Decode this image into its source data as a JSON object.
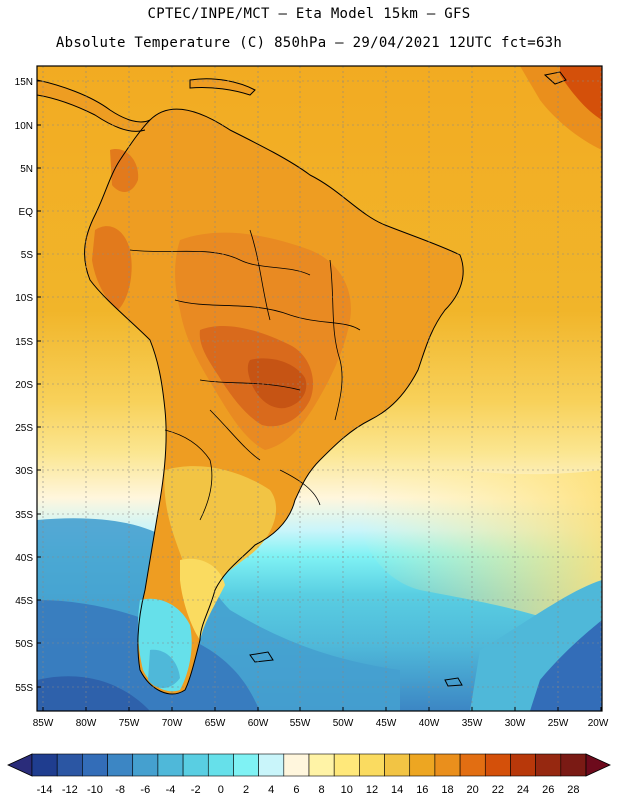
{
  "header": {
    "line1": "CPTEC/INPE/MCT –  Eta Model 15km – GFS",
    "line2": "Absolute Temperature (C) 850hPa – 29/04/2021 12UTC fct=63h"
  },
  "map": {
    "lat_labels": [
      "15N",
      "10N",
      "5N",
      "EQ",
      "5S",
      "10S",
      "15S",
      "20S",
      "25S",
      "30S",
      "35S",
      "40S",
      "45S",
      "50S",
      "55S"
    ],
    "lon_labels": [
      "85W",
      "80W",
      "75W",
      "70W",
      "65W",
      "60W",
      "55W",
      "50W",
      "45W",
      "40W",
      "35W",
      "30W",
      "25W",
      "20W"
    ]
  },
  "colorbar": {
    "labels": [
      "-14",
      "-12",
      "-10",
      "-8",
      "-6",
      "-4",
      "-2",
      "0",
      "2",
      "4",
      "6",
      "8",
      "10",
      "12",
      "14",
      "16",
      "18",
      "20",
      "22",
      "24",
      "26",
      "28"
    ],
    "colors": [
      "#1f3d8f",
      "#2b56a3",
      "#336db8",
      "#3c86c4",
      "#45a0cf",
      "#4fb8d9",
      "#59cee2",
      "#66e0ea",
      "#7ff2f4",
      "#c9f5fa",
      "#fff6dd",
      "#fff3a6",
      "#ffe87a",
      "#fadb60",
      "#f2c444",
      "#eda622",
      "#ea8f1c",
      "#e26e12",
      "#d4500a",
      "#b8380a",
      "#962810",
      "#7a1a14"
    ],
    "low_arrow_color": "#2a2c7a",
    "high_arrow_color": "#6d0a1c"
  },
  "colors": {
    "ocean_warm": "#f0b327",
    "land_hot": "#e98a22",
    "land_hotter": "#d96a1c",
    "cold_water": "#7ff2f4",
    "coast_line": "#000000"
  }
}
